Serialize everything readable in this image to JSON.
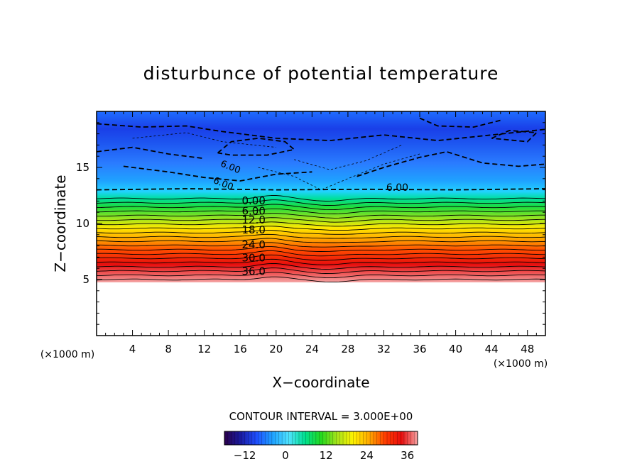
{
  "chart_data": {
    "type": "heatmap",
    "title": "disturbunce of potential temperature",
    "xlabel": "X−coordinate",
    "ylabel": "Z−coordinate",
    "x_unit": "(×1000 m)",
    "z_unit": "(×1000 m)",
    "xlim": [
      0,
      50
    ],
    "ylim": [
      0,
      20
    ],
    "x_ticks": [
      4,
      8,
      12,
      16,
      20,
      24,
      28,
      32,
      36,
      40,
      44,
      48
    ],
    "y_ticks": [
      5,
      10,
      15
    ],
    "contour_interval_text": "CONTOUR INTERVAL = 3.000E+00",
    "contour_labels_below": [
      "0.00",
      "6.00",
      "12.0",
      "18.0",
      "24.0",
      "30.0",
      "36.0"
    ],
    "contour_label_levels": [
      0,
      6,
      12,
      18,
      24,
      30,
      36
    ],
    "contour_label_heights": [
      11.7,
      10.8,
      10.0,
      9.1,
      7.8,
      6.6,
      5.4
    ],
    "contour_label_x": 17.5,
    "upper_label_right": "6.00",
    "upper_label_right_pos": [
      33.5,
      12.9
    ],
    "upper_labels_left": [
      "6.00",
      "6.00"
    ],
    "upper_labels_left_pos": [
      [
        14.8,
        14.8
      ],
      [
        14.0,
        13.3
      ]
    ],
    "colorbar": {
      "range": [
        -18,
        39
      ],
      "ticks": [
        -12,
        0,
        12,
        24,
        36
      ],
      "tick_labels": [
        "−12",
        "0",
        "12",
        "24",
        "36"
      ]
    }
  },
  "colors": {
    "scale": [
      "#2a004a",
      "#1a1aa0",
      "#1e4fff",
      "#1fa2ff",
      "#4fe3ff",
      "#00e08f",
      "#22d81e",
      "#a6e31a",
      "#fff200",
      "#ffa800",
      "#ff3c00",
      "#e80d0d",
      "#f5a2a2"
    ]
  }
}
